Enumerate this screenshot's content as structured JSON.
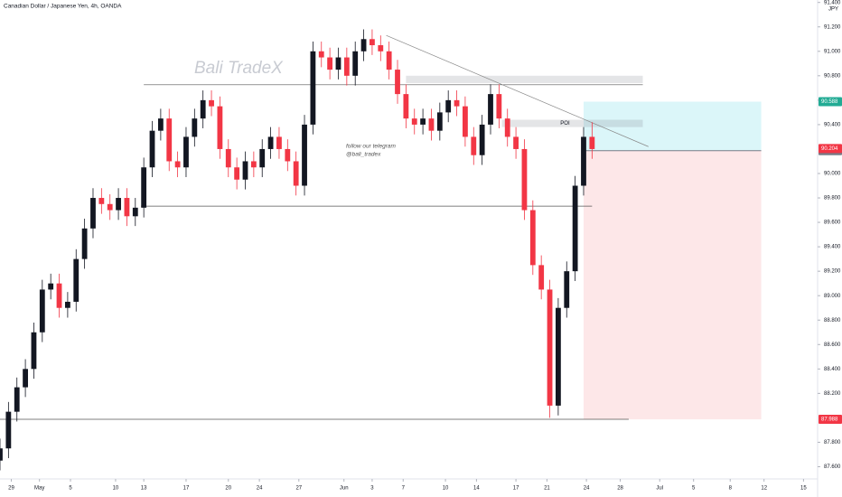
{
  "chart_data": {
    "type": "candlestick",
    "title": "Canadian Dollar / Japanese Yen, 4h, OANDA",
    "currency": "JPY",
    "watermark": "Bali TradeX",
    "note": [
      "follow our telegram",
      "@bali_tradex"
    ],
    "x": [
      0,
      3,
      6,
      9,
      12,
      15,
      18,
      21,
      24,
      27,
      30,
      33,
      36,
      39,
      42,
      45,
      48,
      51,
      54,
      57,
      60,
      63,
      66,
      69,
      72,
      75,
      78,
      81,
      84,
      87,
      90,
      93,
      96,
      99,
      102,
      105,
      108,
      111,
      114,
      117,
      120,
      123,
      126,
      129,
      132,
      135,
      138,
      141,
      144,
      147,
      150,
      153,
      156,
      159,
      162,
      165,
      168,
      171,
      174,
      177,
      180,
      183,
      186,
      189,
      192,
      195,
      198,
      201,
      204,
      207,
      210
    ],
    "open": [
      87.65,
      87.75,
      88.05,
      88.25,
      88.4,
      88.7,
      89.05,
      89.1,
      88.9,
      88.95,
      89.3,
      89.55,
      89.8,
      89.75,
      89.7,
      89.8,
      89.65,
      89.72,
      90.05,
      90.35,
      90.45,
      90.1,
      90.05,
      90.3,
      90.45,
      90.6,
      90.55,
      90.2,
      90.05,
      89.95,
      90.1,
      90.05,
      90.2,
      90.3,
      90.2,
      90.1,
      89.9,
      90.4,
      91.0,
      90.95,
      90.85,
      90.95,
      90.8,
      91.0,
      91.1,
      91.05,
      91.0,
      90.85,
      90.65,
      90.45,
      90.4,
      90.45,
      90.35,
      90.5,
      90.6,
      90.55,
      90.3,
      90.15,
      90.4,
      90.65,
      90.45,
      90.3,
      90.2,
      89.7,
      89.25,
      89.05,
      88.1,
      88.9,
      89.2,
      89.9,
      90.3
    ],
    "high": [
      87.83,
      88.13,
      88.33,
      88.48,
      88.78,
      89.13,
      89.18,
      89.18,
      89.03,
      89.38,
      89.63,
      89.88,
      89.88,
      89.83,
      89.88,
      89.88,
      89.8,
      90.13,
      90.43,
      90.53,
      90.53,
      90.18,
      90.38,
      90.53,
      90.68,
      90.68,
      90.63,
      90.28,
      90.13,
      90.18,
      90.18,
      90.28,
      90.38,
      90.38,
      90.28,
      90.18,
      90.48,
      91.08,
      91.08,
      91.03,
      91.03,
      91.03,
      91.08,
      91.18,
      91.18,
      91.13,
      91.08,
      90.93,
      90.73,
      90.53,
      90.53,
      90.53,
      90.58,
      90.68,
      90.68,
      90.63,
      90.38,
      90.48,
      90.73,
      90.73,
      90.53,
      90.38,
      90.28,
      89.78,
      89.33,
      89.13,
      88.98,
      89.28,
      89.98,
      90.38,
      90.42
    ],
    "low": [
      87.57,
      87.67,
      87.97,
      88.17,
      88.32,
      88.62,
      88.97,
      88.82,
      88.82,
      88.87,
      89.22,
      89.47,
      89.67,
      89.62,
      89.62,
      89.57,
      89.57,
      89.64,
      89.97,
      90.27,
      90.02,
      89.97,
      89.97,
      90.22,
      90.37,
      90.47,
      90.12,
      89.97,
      89.87,
      89.87,
      89.97,
      89.97,
      90.12,
      90.12,
      90.02,
      89.82,
      89.82,
      90.32,
      90.87,
      90.77,
      90.77,
      90.72,
      90.72,
      90.92,
      90.97,
      90.92,
      90.77,
      90.57,
      90.37,
      90.32,
      90.32,
      90.27,
      90.27,
      90.42,
      90.47,
      90.22,
      90.07,
      90.07,
      90.32,
      90.37,
      90.22,
      90.12,
      89.62,
      89.17,
      88.97,
      88.0,
      88.02,
      88.82,
      89.12,
      89.82,
      90.12
    ],
    "close": [
      87.75,
      88.05,
      88.25,
      88.4,
      88.7,
      89.05,
      89.1,
      88.9,
      88.95,
      89.3,
      89.55,
      89.8,
      89.75,
      89.7,
      89.8,
      89.65,
      89.72,
      90.05,
      90.35,
      90.45,
      90.1,
      90.05,
      90.3,
      90.45,
      90.6,
      90.55,
      90.2,
      90.05,
      89.95,
      90.1,
      90.05,
      90.2,
      90.3,
      90.2,
      90.1,
      89.9,
      90.4,
      91.0,
      90.95,
      90.85,
      90.95,
      90.8,
      91.0,
      91.1,
      91.05,
      91.0,
      90.85,
      90.65,
      90.45,
      90.4,
      90.45,
      90.35,
      90.5,
      90.6,
      90.55,
      90.3,
      90.15,
      90.4,
      90.65,
      90.45,
      90.3,
      90.2,
      89.7,
      89.25,
      89.05,
      88.1,
      88.9,
      89.2,
      89.9,
      90.3,
      90.2
    ],
    "up_color": "#131722",
    "down_color": "#f23645",
    "xlim": [
      0,
      290
    ],
    "ylim": [
      87.5,
      91.42
    ],
    "xticks": [
      {
        "value": 4,
        "label": "29"
      },
      {
        "value": 14,
        "label": "May"
      },
      {
        "value": 25,
        "label": "5"
      },
      {
        "value": 41,
        "label": "10"
      },
      {
        "value": 51,
        "label": "13"
      },
      {
        "value": 66,
        "label": "17"
      },
      {
        "value": 81,
        "label": "20"
      },
      {
        "value": 92,
        "label": "24"
      },
      {
        "value": 106,
        "label": "27"
      },
      {
        "value": 122,
        "label": "Jun"
      },
      {
        "value": 132,
        "label": "3"
      },
      {
        "value": 143,
        "label": "7"
      },
      {
        "value": 158,
        "label": "10"
      },
      {
        "value": 169,
        "label": "14"
      },
      {
        "value": 183,
        "label": "17"
      },
      {
        "value": 194,
        "label": "21"
      },
      {
        "value": 208,
        "label": "24"
      },
      {
        "value": 220,
        "label": "28"
      },
      {
        "value": 234,
        "label": "Jul"
      },
      {
        "value": 246,
        "label": "5"
      },
      {
        "value": 259,
        "label": "8"
      },
      {
        "value": 271,
        "label": "12"
      },
      {
        "value": 285,
        "label": "15"
      }
    ],
    "yticks": [
      {
        "value": 87.6,
        "label": "87.600"
      },
      {
        "value": 87.8,
        "label": "87.800"
      },
      {
        "value": 88.2,
        "label": "88.200"
      },
      {
        "value": 88.4,
        "label": "88.400"
      },
      {
        "value": 88.6,
        "label": "88.600"
      },
      {
        "value": 88.8,
        "label": "88.800"
      },
      {
        "value": 89,
        "label": "89.000"
      },
      {
        "value": 89.2,
        "label": "89.200"
      },
      {
        "value": 89.4,
        "label": "89.400"
      },
      {
        "value": 89.6,
        "label": "89.600"
      },
      {
        "value": 89.8,
        "label": "89.800"
      },
      {
        "value": 90,
        "label": "90.000"
      },
      {
        "value": 90.4,
        "label": "90.400"
      },
      {
        "value": 90.6,
        "label": "90.600"
      },
      {
        "value": 90.8,
        "label": "90.800"
      },
      {
        "value": 91,
        "label": "91.000"
      },
      {
        "value": 91.2,
        "label": "91.200"
      },
      {
        "value": 91.4,
        "label": "91.400"
      }
    ],
    "hlines": [
      {
        "y": 90.726,
        "x": [
          51,
          228
        ]
      },
      {
        "y": 89.733,
        "x": [
          50,
          210
        ]
      },
      {
        "y": 87.988,
        "x": [
          0,
          223
        ]
      }
    ],
    "zones": [
      {
        "y": [
          90.74,
          90.8
        ],
        "x": [
          144,
          228
        ]
      },
      {
        "y": [
          90.38,
          90.44
        ],
        "x": [
          178,
          228
        ],
        "label": "POI"
      }
    ],
    "trendline": {
      "x": [
        137,
        230
      ],
      "y": [
        91.13,
        90.22
      ]
    },
    "position": {
      "x": [
        207,
        270
      ],
      "entry": 90.187,
      "target": 90.588,
      "stop": 87.988
    },
    "last_price": 90.204
  }
}
